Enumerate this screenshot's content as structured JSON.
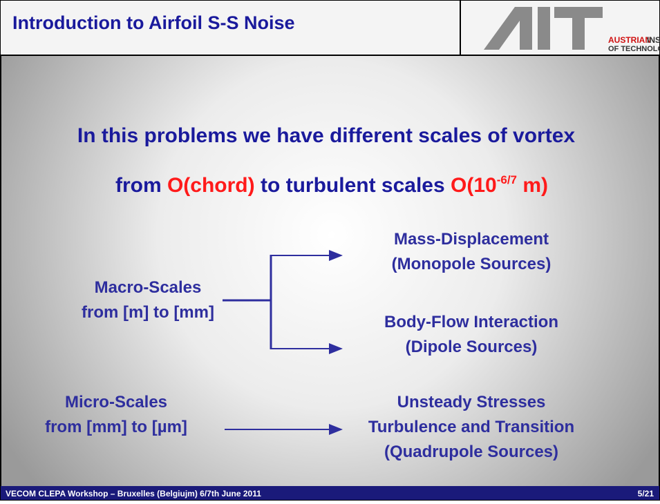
{
  "header": {
    "title": "Introduction to Airfoil S-S Noise",
    "logo": {
      "line1_a": "AUSTRIAN",
      "line1_b": "INSTITUT",
      "line2": "OF TECHNOLOGY"
    }
  },
  "headline": {
    "line1": "In this problems we have different scales of vortex",
    "line2": [
      "from ",
      "O(chord)",
      " to turbulent scales ",
      "O(10",
      "-6/7",
      " m)"
    ]
  },
  "diagram": {
    "macro": [
      "Macro-Scales",
      "from [m] to [mm]"
    ],
    "micro": [
      "Micro-Scales",
      "from [mm] to [µm]"
    ],
    "monopole": [
      "Mass-Displacement",
      "(Monopole Sources)"
    ],
    "dipole": [
      "Body-Flow Interaction",
      "(Dipole Sources)"
    ],
    "quadrupole": [
      "Unsteady Stresses",
      "Turbulence and Transition",
      "(Quadrupole Sources)"
    ]
  },
  "footer": {
    "left": "VECOM CLEPA Workshop – Bruxelles (Belgiujm)  6/7th June 2011",
    "right": "5/21"
  }
}
